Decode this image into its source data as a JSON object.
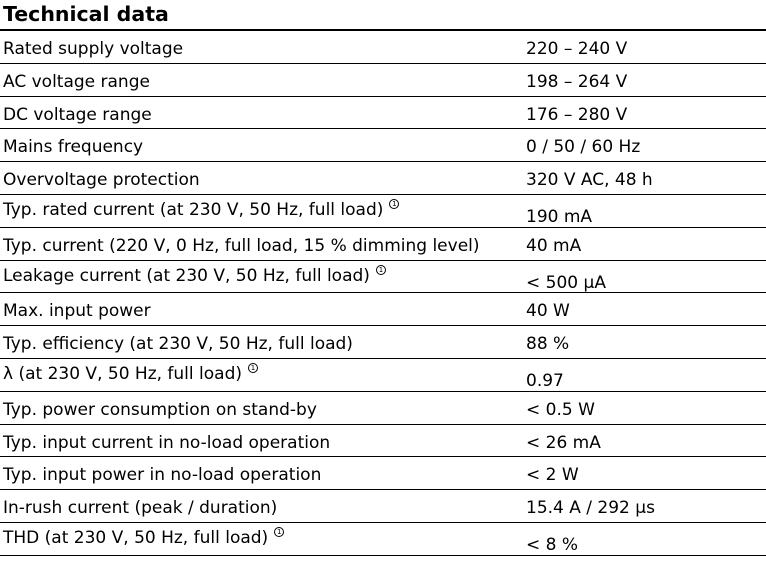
{
  "title": "Technical data",
  "note_marker": "1",
  "rows": [
    {
      "label": "Rated supply voltage",
      "value": "220 – 240 V",
      "note": false
    },
    {
      "label": "AC voltage range",
      "value": "198 – 264 V",
      "note": false
    },
    {
      "label": "DC voltage range",
      "value": "176 – 280 V",
      "note": false
    },
    {
      "label": "Mains frequency",
      "value": "0 / 50 / 60 Hz",
      "note": false
    },
    {
      "label": "Overvoltage protection",
      "value": "320 V AC, 48 h",
      "note": false
    },
    {
      "label": "Typ. rated current (at 230 V, 50 Hz, full load)",
      "value": "190 mA",
      "note": true
    },
    {
      "label": "Typ. current (220 V, 0 Hz, full load, 15 % dimming level)",
      "value": "40 mA",
      "note": false
    },
    {
      "label": "Leakage current (at 230 V, 50 Hz, full load)",
      "value": "< 500 µA",
      "note": true
    },
    {
      "label": "Max. input power",
      "value": "40 W",
      "note": false
    },
    {
      "label": "Typ. efficiency (at 230 V, 50 Hz, full load)",
      "value": "88 %",
      "note": false
    },
    {
      "label": "λ (at 230 V, 50 Hz, full load)",
      "value": "0.97",
      "note": true
    },
    {
      "label": "Typ. power consumption on stand-by",
      "value": "< 0.5 W",
      "note": false
    },
    {
      "label": "Typ. input current in no-load operation",
      "value": "< 26 mA",
      "note": false
    },
    {
      "label": "Typ. input power in no-load operation",
      "value": "< 2 W",
      "note": false
    },
    {
      "label": "In-rush current (peak / duration)",
      "value": "15.4 A / 292 µs",
      "note": false
    },
    {
      "label": "THD (at 230 V, 50 Hz, full load)",
      "value": "< 8 %",
      "note": true
    }
  ]
}
